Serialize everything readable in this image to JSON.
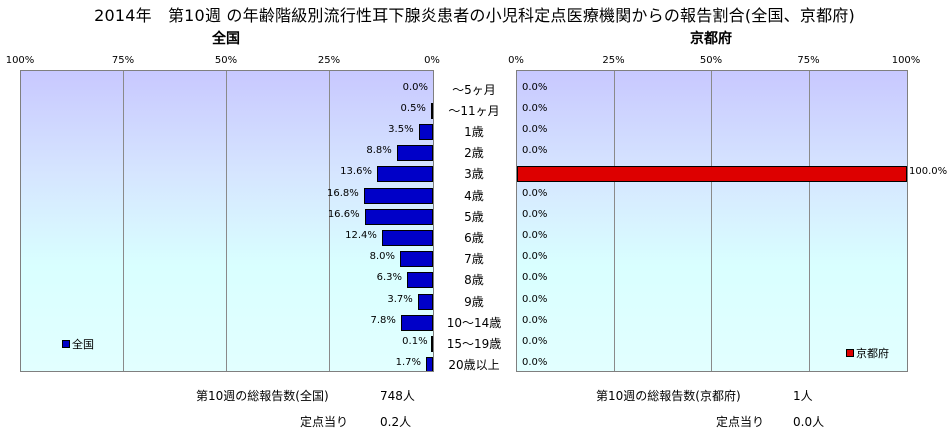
{
  "title": "2014年　第10週 の年齢階級別流行性耳下腺炎患者の小児科定点医療機関からの報告割合(全国、京都府)",
  "left_panel": {
    "title": "全国",
    "ticks": [
      "100%",
      "75%",
      "50%",
      "25%",
      "0%"
    ],
    "legend": "全国",
    "footer": {
      "total_label": "第10週の総報告数(全国)",
      "total_value": "748人",
      "per_label": "定点当り",
      "per_value": "0.2人"
    }
  },
  "right_panel": {
    "title": "京都府",
    "ticks": [
      "0%",
      "25%",
      "50%",
      "75%",
      "100%"
    ],
    "legend": "京都府",
    "footer": {
      "total_label": "第10週の総報告数(京都府)",
      "total_value": "1人",
      "per_label": "定点当り",
      "per_value": "0.0人"
    }
  },
  "colors": {
    "national": "#0000c8",
    "kyoto": "#dd0000"
  },
  "chart_data": [
    {
      "type": "bar",
      "orientation": "horizontal",
      "direction": "right-to-left",
      "panel": "全国",
      "categories": [
        "～5ヶ月",
        "～11ヶ月",
        "1歳",
        "2歳",
        "3歳",
        "4歳",
        "5歳",
        "6歳",
        "7歳",
        "8歳",
        "9歳",
        "10～14歳",
        "15～19歳",
        "20歳以上"
      ],
      "values": [
        0.0,
        0.5,
        3.5,
        8.8,
        13.6,
        16.8,
        16.6,
        12.4,
        8.0,
        6.3,
        3.7,
        7.8,
        0.1,
        1.7
      ],
      "value_labels": [
        "0.0%",
        "0.5%",
        "3.5%",
        "8.8%",
        "13.6%",
        "16.8%",
        "16.6%",
        "12.4%",
        "8.0%",
        "6.3%",
        "3.7%",
        "7.8%",
        "0.1%",
        "1.7%"
      ],
      "xlim": [
        0,
        100
      ],
      "unit": "%",
      "legend": "全国",
      "legend_position": "bottom-left",
      "grid": true
    },
    {
      "type": "bar",
      "orientation": "horizontal",
      "direction": "left-to-right",
      "panel": "京都府",
      "categories": [
        "～5ヶ月",
        "～11ヶ月",
        "1歳",
        "2歳",
        "3歳",
        "4歳",
        "5歳",
        "6歳",
        "7歳",
        "8歳",
        "9歳",
        "10～14歳",
        "15～19歳",
        "20歳以上"
      ],
      "values": [
        0.0,
        0.0,
        0.0,
        0.0,
        100.0,
        0.0,
        0.0,
        0.0,
        0.0,
        0.0,
        0.0,
        0.0,
        0.0,
        0.0
      ],
      "value_labels": [
        "0.0%",
        "0.0%",
        "0.0%",
        "0.0%",
        "100.0%",
        "0.0%",
        "0.0%",
        "0.0%",
        "0.0%",
        "0.0%",
        "0.0%",
        "0.0%",
        "0.0%",
        "0.0%"
      ],
      "xlim": [
        0,
        100
      ],
      "unit": "%",
      "legend": "京都府",
      "legend_position": "bottom-right",
      "grid": true
    }
  ]
}
